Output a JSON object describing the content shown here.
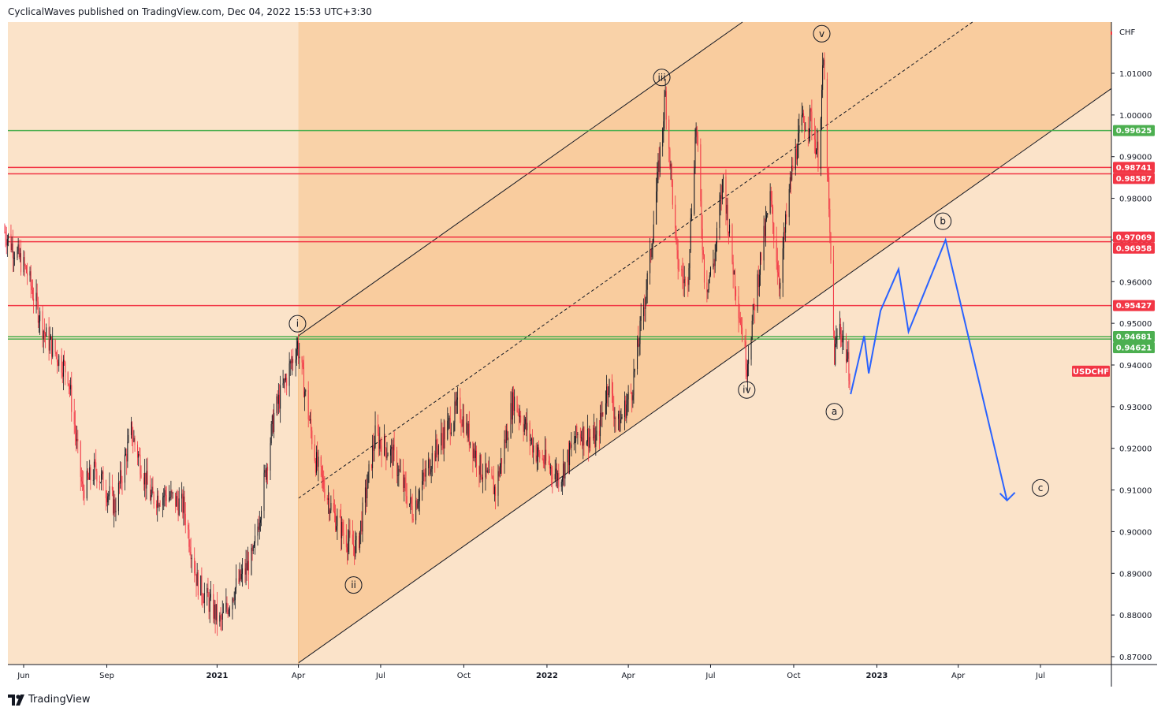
{
  "header": {
    "publisher": "CyclicalWaves published on TradingView.com, Dec 04, 2022 15:53 UTC+3:30"
  },
  "footer": {
    "brand": "TradingView",
    "logo_icon": "tradingview-logo-icon"
  },
  "chart_data": {
    "type": "candlestick",
    "symbol": "USDCHF",
    "currency_label": "CHF",
    "y_ticks": [
      "1.01000",
      "1.00000",
      "0.99000",
      "0.98000",
      "0.97000",
      "0.96000",
      "0.95000",
      "0.94000",
      "0.93000",
      "0.92000",
      "0.91000",
      "0.90000",
      "0.89000",
      "0.88000",
      "0.87000"
    ],
    "x_ticks": [
      "Jun",
      "Sep",
      "2021",
      "Apr",
      "Jul",
      "Oct",
      "2022",
      "Apr",
      "Jul",
      "Oct",
      "2023",
      "Apr",
      "Jul"
    ],
    "x_tick_dates": [
      "2020-06-01",
      "2020-09-01",
      "2021-01-01",
      "2021-04-01",
      "2021-07-01",
      "2021-10-01",
      "2022-01-01",
      "2022-04-01",
      "2022-07-01",
      "2022-10-01",
      "2023-01-01",
      "2023-04-01",
      "2023-07-01"
    ],
    "price_anchors": [
      {
        "date": "2020-05-11",
        "price": 0.972
      },
      {
        "date": "2020-06-05",
        "price": 0.962
      },
      {
        "date": "2020-06-25",
        "price": 0.947
      },
      {
        "date": "2020-07-20",
        "price": 0.938
      },
      {
        "date": "2020-08-05",
        "price": 0.91
      },
      {
        "date": "2020-08-20",
        "price": 0.915
      },
      {
        "date": "2020-09-10",
        "price": 0.906
      },
      {
        "date": "2020-09-28",
        "price": 0.924
      },
      {
        "date": "2020-10-20",
        "price": 0.908
      },
      {
        "date": "2020-11-05",
        "price": 0.909
      },
      {
        "date": "2020-11-25",
        "price": 0.906
      },
      {
        "date": "2020-12-10",
        "price": 0.888
      },
      {
        "date": "2021-01-05",
        "price": 0.878
      },
      {
        "date": "2021-01-20",
        "price": 0.886
      },
      {
        "date": "2021-02-10",
        "price": 0.894
      },
      {
        "date": "2021-03-05",
        "price": 0.928
      },
      {
        "date": "2021-03-31",
        "price": 0.945
      },
      {
        "date": "2021-04-20",
        "price": 0.917
      },
      {
        "date": "2021-05-10",
        "price": 0.904
      },
      {
        "date": "2021-05-25",
        "price": 0.898
      },
      {
        "date": "2021-06-05",
        "price": 0.896
      },
      {
        "date": "2021-06-25",
        "price": 0.923
      },
      {
        "date": "2021-07-15",
        "price": 0.918
      },
      {
        "date": "2021-08-05",
        "price": 0.905
      },
      {
        "date": "2021-08-25",
        "price": 0.917
      },
      {
        "date": "2021-09-25",
        "price": 0.93
      },
      {
        "date": "2021-10-20",
        "price": 0.915
      },
      {
        "date": "2021-11-05",
        "price": 0.91
      },
      {
        "date": "2021-11-25",
        "price": 0.932
      },
      {
        "date": "2021-12-20",
        "price": 0.919
      },
      {
        "date": "2022-01-15",
        "price": 0.913
      },
      {
        "date": "2022-02-05",
        "price": 0.924
      },
      {
        "date": "2022-02-25",
        "price": 0.922
      },
      {
        "date": "2022-03-10",
        "price": 0.936
      },
      {
        "date": "2022-03-20",
        "price": 0.925
      },
      {
        "date": "2022-04-05",
        "price": 0.934
      },
      {
        "date": "2022-04-25",
        "price": 0.965
      },
      {
        "date": "2022-05-12",
        "price": 1.005
      },
      {
        "date": "2022-05-25",
        "price": 0.965
      },
      {
        "date": "2022-06-05",
        "price": 0.958
      },
      {
        "date": "2022-06-15",
        "price": 0.998
      },
      {
        "date": "2022-06-25",
        "price": 0.958
      },
      {
        "date": "2022-07-05",
        "price": 0.965
      },
      {
        "date": "2022-07-15",
        "price": 0.985
      },
      {
        "date": "2022-07-25",
        "price": 0.965
      },
      {
        "date": "2022-08-10",
        "price": 0.94
      },
      {
        "date": "2022-08-25",
        "price": 0.965
      },
      {
        "date": "2022-09-05",
        "price": 0.98
      },
      {
        "date": "2022-09-15",
        "price": 0.96
      },
      {
        "date": "2022-09-28",
        "price": 0.985
      },
      {
        "date": "2022-10-10",
        "price": 0.998
      },
      {
        "date": "2022-10-20",
        "price": 0.999
      },
      {
        "date": "2022-10-28",
        "price": 0.99
      },
      {
        "date": "2022-11-03",
        "price": 1.013
      },
      {
        "date": "2022-11-10",
        "price": 0.97
      },
      {
        "date": "2022-11-15",
        "price": 0.942
      },
      {
        "date": "2022-11-20",
        "price": 0.95
      },
      {
        "date": "2022-11-25",
        "price": 0.946
      },
      {
        "date": "2022-12-02",
        "price": 0.938
      }
    ],
    "horizontal_levels": [
      {
        "label": "0.99625",
        "price": 0.99625,
        "color": "#4caf50"
      },
      {
        "label": "0.98741",
        "price": 0.98741,
        "color": "#f23645"
      },
      {
        "label": "0.98587",
        "price": 0.98587,
        "color": "#f23645"
      },
      {
        "label": "0.97069",
        "price": 0.97069,
        "color": "#f23645"
      },
      {
        "label": "0.96958",
        "price": 0.96958,
        "color": "#f23645"
      },
      {
        "label": "0.95427",
        "price": 0.95427,
        "color": "#f23645"
      },
      {
        "label": "0.94681",
        "price": 0.94681,
        "color": "#4caf50"
      },
      {
        "label": "0.94621",
        "price": 0.94621,
        "color": "#4caf50"
      }
    ],
    "current_symbol_tag": {
      "label": "USDCHF",
      "price": 0.9385,
      "color": "#f23645"
    },
    "channel": {
      "start_date": "2021-04-01",
      "lower": [
        {
          "date": "2021-04-01",
          "price": 0.8685
        },
        {
          "date": "2023-07-25",
          "price": 0.998
        }
      ],
      "mid": [
        {
          "date": "2021-04-01",
          "price": 0.908
        },
        {
          "date": "2023-06-01",
          "price": 1.022
        }
      ],
      "upper": [
        {
          "date": "2021-04-01",
          "price": 0.947
        },
        {
          "date": "2022-09-05",
          "price": 1.022
        }
      ]
    },
    "wave_labels": [
      {
        "label": "i",
        "date": "2021-03-31",
        "price": 0.9499
      },
      {
        "label": "ii",
        "date": "2021-06-01",
        "price": 0.8872
      },
      {
        "label": "iii",
        "date": "2022-05-08",
        "price": 1.009
      },
      {
        "label": "iv",
        "date": "2022-08-10",
        "price": 0.934
      },
      {
        "label": "v",
        "date": "2022-11-01",
        "price": 1.0195
      },
      {
        "label": "a",
        "date": "2022-11-15",
        "price": 0.9288
      },
      {
        "label": "b",
        "date": "2023-03-15",
        "price": 0.9745
      },
      {
        "label": "c",
        "date": "2023-07-01",
        "price": 0.9105
      }
    ],
    "projection_path": [
      {
        "date": "2022-12-03",
        "price": 0.933
      },
      {
        "date": "2022-12-18",
        "price": 0.947
      },
      {
        "date": "2022-12-23",
        "price": 0.938
      },
      {
        "date": "2023-01-05",
        "price": 0.953
      },
      {
        "date": "2023-01-25",
        "price": 0.963
      },
      {
        "date": "2023-02-05",
        "price": 0.948
      },
      {
        "date": "2023-03-18",
        "price": 0.97
      },
      {
        "date": "2023-05-25",
        "price": 0.9075
      }
    ],
    "projection_color": "#2962ff",
    "up_color": "#131722",
    "down_color": "#f23645"
  }
}
